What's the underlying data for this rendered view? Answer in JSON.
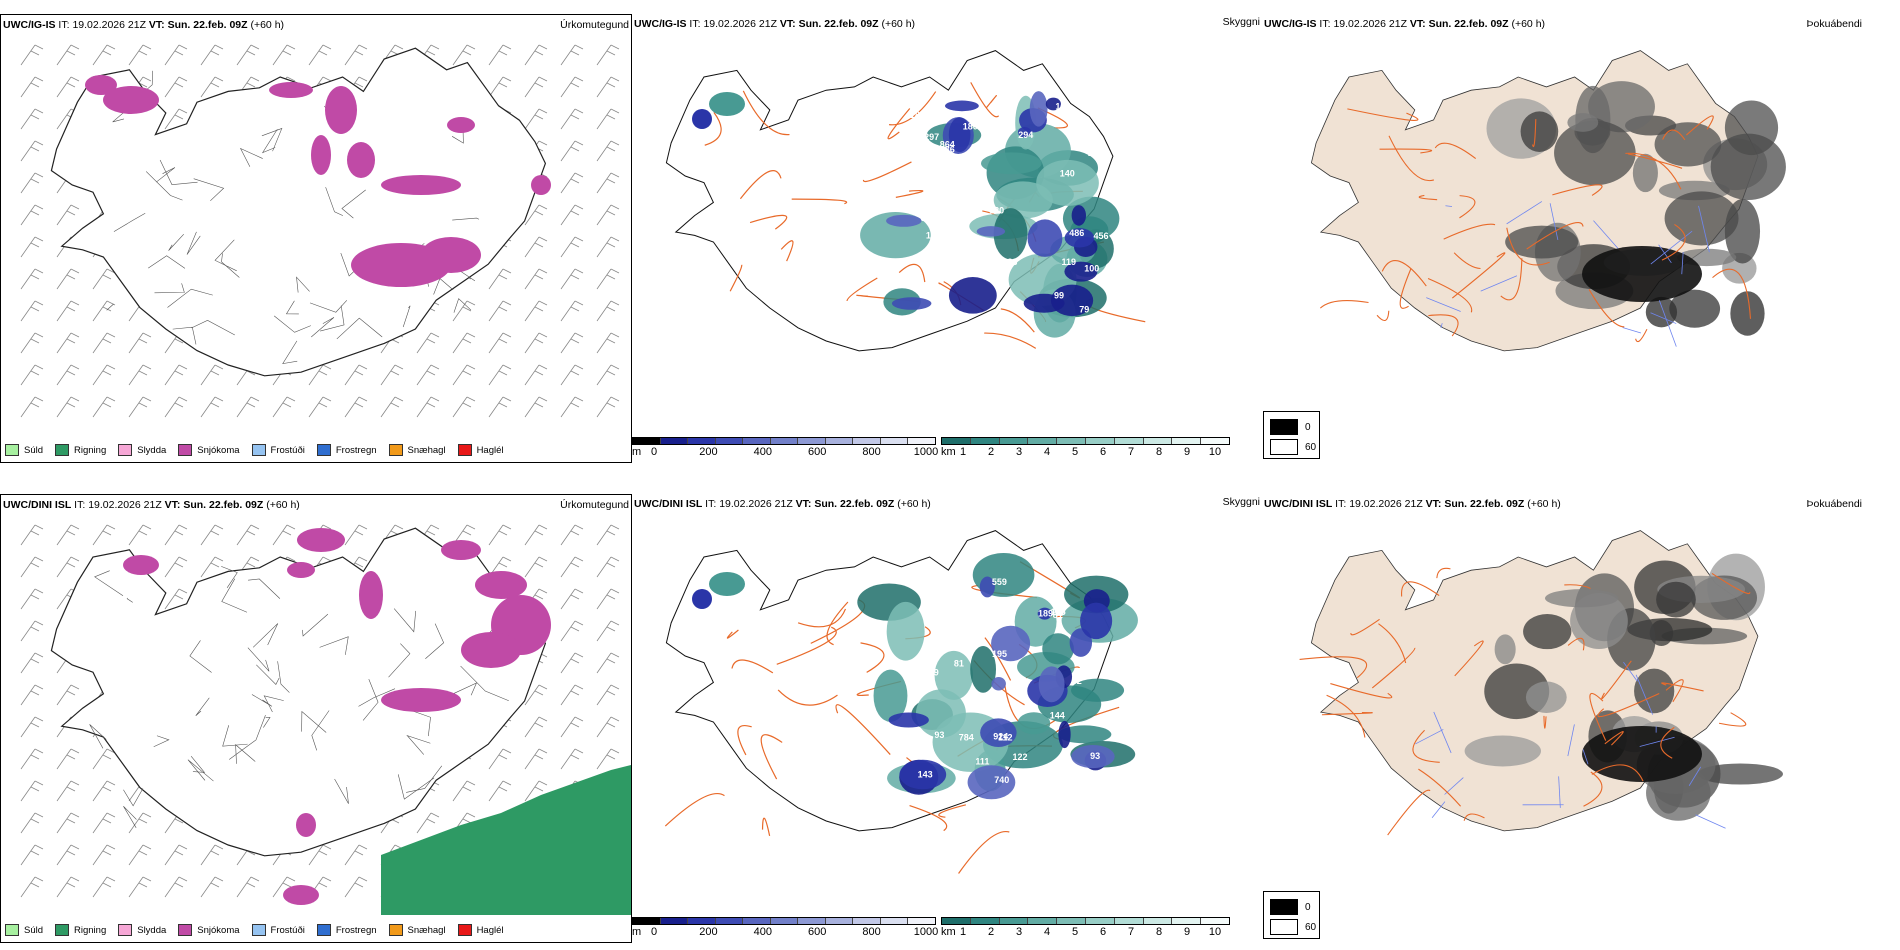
{
  "colors": {
    "fog_land": "#f0e2d4",
    "road": "#e86a2a",
    "river": "#6f86f0",
    "outline": "#222222",
    "precip": {
      "Súld": "#a7f0a0",
      "Rigning": "#2e9a64",
      "Slydda": "#f6a7d6",
      "Snjókoma": "#c04aa6",
      "Frostúði": "#96c4f2",
      "Frostregn": "#2f6ed0",
      "Snæhagl": "#f29a1a",
      "Haglél": "#e81818"
    },
    "cloud_ramp": [
      "#000000",
      "#181f8c",
      "#2a35a8",
      "#3e4bb4",
      "#5966bf",
      "#7280c9",
      "#8d99d4",
      "#a8b1dd",
      "#c2c8e7",
      "#dadff0",
      "#f0f2f9"
    ],
    "vis_ramp": [
      "#1e6e6a",
      "#2f8580",
      "#489a93",
      "#62aca4",
      "#7dbdb5",
      "#98cec6",
      "#b2ddd6",
      "#cce9e4",
      "#e3f4f1",
      "#f4fbfa"
    ]
  },
  "rows": [
    {
      "model": "UWC/IG-IS",
      "it_label": "IT:",
      "it_value": "19.02.2026 21Z",
      "vt_label": "VT:",
      "vt_value": "Sun. 22.feb. 09Z",
      "lead": "(+60 h)",
      "precip_title": "Úrkomutegund",
      "cloud_title": "Skyggni",
      "fog_title": "Þokuábendi",
      "cloud_numbers": [
        "864",
        "103",
        "119",
        "68",
        "203",
        "486",
        "180",
        "187",
        "99",
        "136",
        "105",
        "79",
        "73",
        "456",
        "294",
        "344",
        "120",
        "370",
        "297",
        "92",
        "37",
        "100",
        "83",
        "133",
        "127",
        "140",
        "120",
        "82"
      ]
    },
    {
      "model": "UWC/DINI ISL",
      "it_label": "IT:",
      "it_value": "19.02.2026 21Z",
      "vt_label": "VT:",
      "vt_value": "Sun. 22.feb. 09Z",
      "lead": "(+60 h)",
      "precip_title": "Úrkomutegund",
      "cloud_title": "Skyggni",
      "fog_title": "Þokuábendi",
      "cloud_numbers": [
        "924",
        "122",
        "127",
        "111",
        "259",
        "81",
        "112",
        "168",
        "81",
        "93",
        "188",
        "143",
        "189",
        "93",
        "559",
        "195",
        "740",
        "784",
        "144",
        "383",
        "82",
        "111",
        "105"
      ]
    }
  ],
  "precip_legend": [
    {
      "label": "Súld",
      "color": "#a7f0a0"
    },
    {
      "label": "Rigning",
      "color": "#2e9a64"
    },
    {
      "label": "Slydda",
      "color": "#f6a7d6"
    },
    {
      "label": "Snjókoma",
      "color": "#c04aa6"
    },
    {
      "label": "Frostúði",
      "color": "#96c4f2"
    },
    {
      "label": "Frostregn",
      "color": "#2f6ed0"
    },
    {
      "label": "Snæhagl",
      "color": "#f29a1a"
    },
    {
      "label": "Haglél",
      "color": "#e81818"
    }
  ],
  "cloud_base_scale": {
    "unit": "m",
    "ticks": [
      "0",
      "200",
      "400",
      "600",
      "800",
      "1000"
    ]
  },
  "visibility_scale": {
    "unit": "km",
    "ticks": [
      "1",
      "2",
      "3",
      "4",
      "5",
      "6",
      "7",
      "8",
      "9",
      "10"
    ]
  },
  "fog_legend": {
    "high": "0",
    "low": "60"
  }
}
